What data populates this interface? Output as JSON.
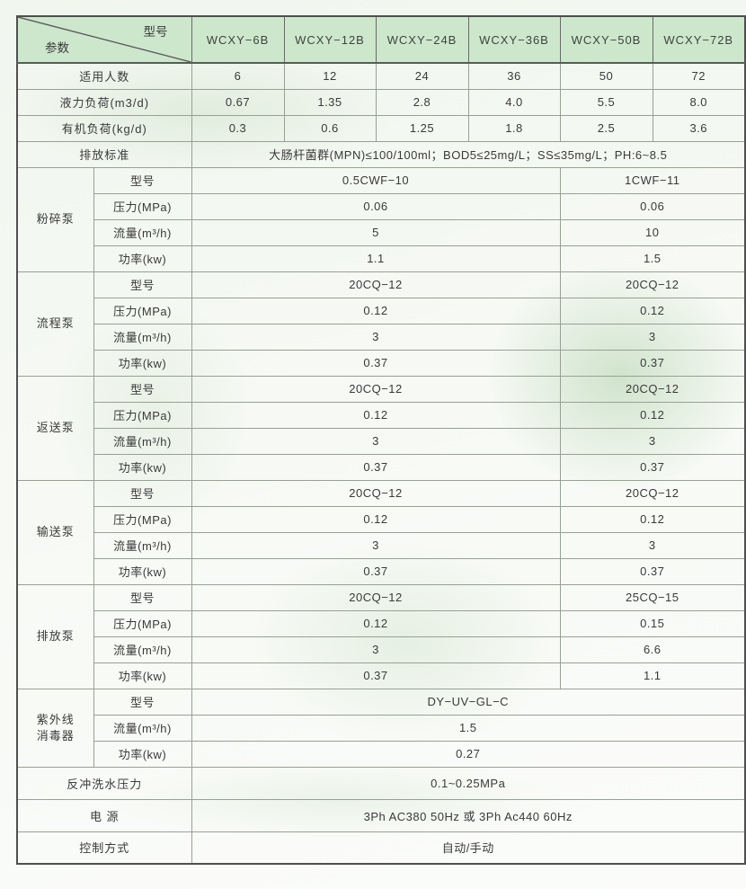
{
  "colors": {
    "header_green": "#cde7cd",
    "text_color": "#3a3a3a",
    "border_dark": "#4f4f4f",
    "border_light": "#98a096"
  },
  "header": {
    "corner_top": "型号",
    "corner_bottom": "参数",
    "models": [
      "WCXY−6B",
      "WCXY−12B",
      "WCXY−24B",
      "WCXY−36B",
      "WCXY−50B",
      "WCXY−72B"
    ]
  },
  "simple_rows": [
    {
      "label": "适用人数",
      "values": [
        "6",
        "12",
        "24",
        "36",
        "50",
        "72"
      ]
    },
    {
      "label": "液力负荷(m3/d)",
      "values": [
        "0.67",
        "1.35",
        "2.8",
        "4.0",
        "5.5",
        "8.0"
      ]
    },
    {
      "label": "有机负荷(kg/d)",
      "values": [
        "0.3",
        "0.6",
        "1.25",
        "1.8",
        "2.5",
        "3.6"
      ]
    }
  ],
  "discharge": {
    "label": "排放标准",
    "value": "大肠杆菌群(MPN)≤100/100ml；BOD5≤25mg/L；SS≤35mg/L；PH:6~8.5"
  },
  "pump_sections": [
    {
      "name": "粉碎泵",
      "rows": [
        {
          "label": "型号",
          "left": "0.5CWF−10",
          "right": "1CWF−11"
        },
        {
          "label": "压力(MPa)",
          "left": "0.06",
          "right": "0.06"
        },
        {
          "label": "流量(m³/h)",
          "left": "5",
          "right": "10"
        },
        {
          "label": "功率(kw)",
          "left": "1.1",
          "right": "1.5"
        }
      ]
    },
    {
      "name": "流程泵",
      "rows": [
        {
          "label": "型号",
          "left": "20CQ−12",
          "right": "20CQ−12"
        },
        {
          "label": "压力(MPa)",
          "left": "0.12",
          "right": "0.12"
        },
        {
          "label": "流量(m³/h)",
          "left": "3",
          "right": "3"
        },
        {
          "label": "功率(kw)",
          "left": "0.37",
          "right": "0.37"
        }
      ]
    },
    {
      "name": "返送泵",
      "rows": [
        {
          "label": "型号",
          "left": "20CQ−12",
          "right": "20CQ−12"
        },
        {
          "label": "压力(MPa)",
          "left": "0.12",
          "right": "0.12"
        },
        {
          "label": "流量(m³/h)",
          "left": "3",
          "right": "3"
        },
        {
          "label": "功率(kw)",
          "left": "0.37",
          "right": "0.37"
        }
      ]
    },
    {
      "name": "输送泵",
      "rows": [
        {
          "label": "型号",
          "left": "20CQ−12",
          "right": "20CQ−12"
        },
        {
          "label": "压力(MPa)",
          "left": "0.12",
          "right": "0.12"
        },
        {
          "label": "流量(m³/h)",
          "left": "3",
          "right": "3"
        },
        {
          "label": "功率(kw)",
          "left": "0.37",
          "right": "0.37"
        }
      ]
    },
    {
      "name": "排放泵",
      "rows": [
        {
          "label": "型号",
          "left": "20CQ−12",
          "right": "25CQ−15"
        },
        {
          "label": "压力(MPa)",
          "left": "0.12",
          "right": "0.15"
        },
        {
          "label": "流量(m³/h)",
          "left": "3",
          "right": "6.6"
        },
        {
          "label": "功率(kw)",
          "left": "0.37",
          "right": "1.1"
        }
      ]
    }
  ],
  "uv_section": {
    "name": "紫外线\n消毒器",
    "rows": [
      {
        "label": "型号",
        "value": "DY−UV−GL−C"
      },
      {
        "label": "流量(m³/h)",
        "value": "1.5"
      },
      {
        "label": "功率(kw)",
        "value": "0.27"
      }
    ]
  },
  "bottom_rows": [
    {
      "label": "反冲洗水压力",
      "value": "0.1~0.25MPa"
    },
    {
      "label": "电 源",
      "value": "3Ph AC380 50Hz 或 3Ph Ac440 60Hz"
    },
    {
      "label": "控制方式",
      "value": "自动/手动"
    }
  ]
}
